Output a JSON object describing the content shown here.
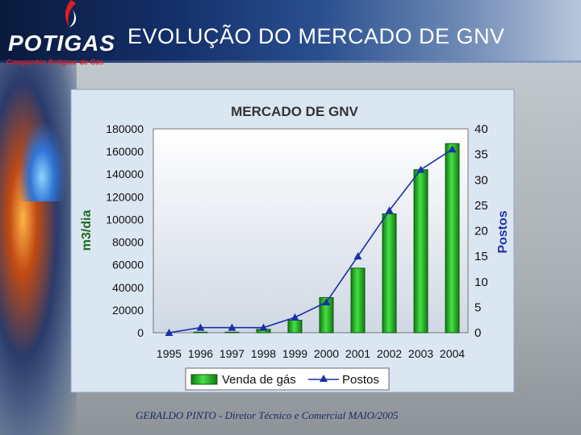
{
  "logo": {
    "name": "POTIGAS",
    "tagline": "Companhia Potiguar de Gás"
  },
  "slide_title": "EVOLUÇÃO DO MERCADO DE GNV",
  "footer": "GERALDO PINTO - Diretor Técnico e Comercial MAIO/2005",
  "colors": {
    "bar_fill": "#2fc02f",
    "bar_stroke": "#0d5a0d",
    "line": "#1a2fa8",
    "marker": "#1a2fa8",
    "ylabel_left": "#1e6b1e",
    "ylabel_right": "#2233aa",
    "chart_bg": "#dbe6f3"
  },
  "chart_data": {
    "type": "bar",
    "title": "MERCADO DE GNV",
    "categories": [
      "1995",
      "1996",
      "1997",
      "1998",
      "1999",
      "2000",
      "2001",
      "2002",
      "2003",
      "2004"
    ],
    "series": [
      {
        "name": "Venda de gás",
        "type": "bar",
        "axis": "left",
        "values": [
          0,
          500,
          500,
          3000,
          11000,
          31000,
          57000,
          105000,
          144000,
          167000
        ]
      },
      {
        "name": "Postos",
        "type": "line",
        "axis": "right",
        "values": [
          0,
          1,
          1,
          1,
          3,
          6,
          15,
          24,
          32,
          36
        ]
      }
    ],
    "ylabel": "m3/dia",
    "ylabel_right": "Postos",
    "ylim": [
      0,
      180000
    ],
    "ylim_right": [
      0,
      40
    ],
    "yticks": [
      "180000",
      "160000",
      "140000",
      "120000",
      "100000",
      "80000",
      "60000",
      "40000",
      "20000",
      "0"
    ],
    "yticks_right": [
      "40",
      "35",
      "30",
      "25",
      "20",
      "15",
      "10",
      "5",
      "0"
    ],
    "grid": false,
    "legend_position": "bottom"
  }
}
